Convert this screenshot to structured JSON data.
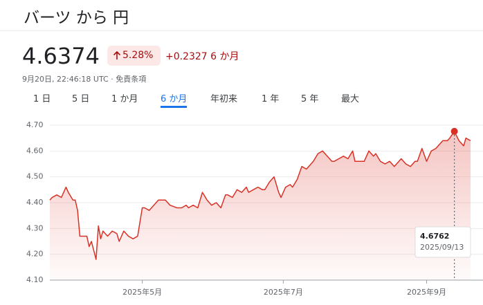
{
  "header": {
    "title": "バーツ から 円",
    "price": 4.6374,
    "change_percent": "5.28%",
    "change": "+0.2327",
    "period": "6 か月",
    "timestamp": "9月20日, 22:46:18 UTC",
    "disclaimer": "免責条項"
  },
  "tabs": {
    "items": [
      "1 日",
      "5 日",
      "1 か月",
      "6 か月",
      "年初来",
      "1 年",
      "5 年",
      "最大"
    ],
    "active": 3
  },
  "chart_data": {
    "type": "line",
    "color": "#d93025",
    "grid": true,
    "area": true,
    "x": [
      0,
      1,
      3,
      5,
      6,
      7,
      8,
      10,
      11,
      12,
      13,
      14,
      16,
      17,
      18,
      20,
      21,
      22,
      23,
      25,
      27,
      29,
      30,
      32,
      34,
      36,
      38,
      40,
      41,
      43,
      45,
      47,
      49,
      50,
      52,
      55,
      57,
      59,
      60,
      62,
      64,
      66,
      68,
      70,
      72,
      74,
      76,
      77,
      79,
      81,
      83,
      85,
      86,
      88,
      90,
      92,
      93,
      95,
      97,
      99,
      100,
      102,
      104,
      105,
      107,
      109,
      111,
      113,
      114,
      116,
      118,
      120,
      122,
      123,
      125,
      127,
      129,
      131,
      132,
      134,
      136,
      138,
      140,
      141,
      143,
      145,
      147,
      149,
      150,
      152,
      154,
      156,
      158,
      159,
      161,
      163,
      165,
      167,
      168,
      170,
      172,
      173,
      175,
      177,
      179,
      180,
      182
    ],
    "values": [
      4.41,
      4.42,
      4.43,
      4.42,
      4.44,
      4.46,
      4.44,
      4.41,
      4.41,
      4.37,
      4.27,
      4.27,
      4.27,
      4.23,
      4.25,
      4.18,
      4.31,
      4.26,
      4.29,
      4.27,
      4.29,
      4.28,
      4.25,
      4.29,
      4.27,
      4.26,
      4.27,
      4.38,
      4.38,
      4.37,
      4.39,
      4.41,
      4.41,
      4.41,
      4.39,
      4.38,
      4.38,
      4.39,
      4.38,
      4.39,
      4.38,
      4.44,
      4.41,
      4.39,
      4.4,
      4.38,
      4.43,
      4.43,
      4.42,
      4.45,
      4.44,
      4.46,
      4.44,
      4.45,
      4.46,
      4.45,
      4.45,
      4.48,
      4.5,
      4.44,
      4.42,
      4.46,
      4.47,
      4.46,
      4.49,
      4.54,
      4.53,
      4.55,
      4.56,
      4.59,
      4.6,
      4.58,
      4.56,
      4.56,
      4.57,
      4.58,
      4.57,
      4.6,
      4.56,
      4.56,
      4.56,
      4.6,
      4.58,
      4.59,
      4.56,
      4.55,
      4.56,
      4.54,
      4.55,
      4.57,
      4.55,
      4.54,
      4.56,
      4.56,
      4.61,
      4.56,
      4.6,
      4.61,
      4.62,
      4.64,
      4.64,
      4.65,
      4.6762,
      4.64,
      4.62,
      4.65,
      4.64
    ],
    "xlim": [
      0,
      182
    ],
    "xticks": [
      {
        "value": 40,
        "label": "2025年5月"
      },
      {
        "value": 101,
        "label": "2025年7月"
      },
      {
        "value": 163,
        "label": "2025年9月"
      }
    ],
    "ylim": [
      4.1,
      4.7
    ],
    "yticks": [
      {
        "value": 4.1,
        "label": "4.10"
      },
      {
        "value": 4.2,
        "label": "4.20"
      },
      {
        "value": 4.3,
        "label": "4.30"
      },
      {
        "value": 4.4,
        "label": "4.40"
      },
      {
        "value": 4.5,
        "label": "4.50"
      },
      {
        "value": 4.6,
        "label": "4.60"
      },
      {
        "value": 4.7,
        "label": "4.70"
      }
    ],
    "tooltip": {
      "x": 175,
      "value": 4.6762,
      "date": "2025/09/13"
    }
  }
}
